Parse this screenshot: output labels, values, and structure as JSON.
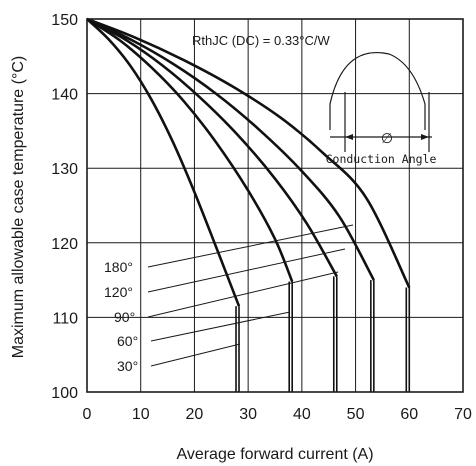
{
  "chart_data": {
    "type": "line",
    "xlabel": "Average forward current (A)",
    "ylabel": "Maximum allowable case temperature (°C)",
    "xlim": [
      0,
      70
    ],
    "ylim": [
      100,
      150
    ],
    "xticks": [
      "0",
      "10",
      "20",
      "30",
      "40",
      "50",
      "60",
      "70"
    ],
    "yticks": [
      "100",
      "110",
      "120",
      "130",
      "140",
      "150"
    ],
    "grid": true,
    "annotation": "RthJC (DC) = 0.33°C/W",
    "inset": {
      "label": "Conduction Angle",
      "symbol": "∅"
    },
    "series": [
      {
        "name": "30°",
        "x": [
          0,
          4,
          8,
          12,
          16,
          20,
          24,
          28.3
        ],
        "y": [
          150,
          147.3,
          143.8,
          139.2,
          133.5,
          126.8,
          119.5,
          111.5
        ],
        "cutoff": 28.3
      },
      {
        "name": "60°",
        "x": [
          0,
          6,
          12,
          18,
          24,
          30,
          35,
          38.2
        ],
        "y": [
          150,
          147.2,
          143.5,
          139.0,
          133.5,
          127.0,
          120.5,
          114.8
        ],
        "cutoff": 38.2
      },
      {
        "name": "90°",
        "x": [
          0,
          7,
          14,
          21,
          28,
          35,
          41,
          46.5
        ],
        "y": [
          150,
          147.3,
          143.8,
          139.5,
          134.5,
          128.6,
          122.5,
          115.5
        ],
        "cutoff": 46.5
      },
      {
        "name": "120°",
        "x": [
          0,
          8,
          16,
          24,
          32,
          40,
          47,
          53.4
        ],
        "y": [
          150,
          147.3,
          144.0,
          140.0,
          135.2,
          129.6,
          123.5,
          115.0
        ],
        "cutoff": 53.4
      },
      {
        "name": "180°",
        "x": [
          0,
          9,
          18,
          27,
          36,
          44,
          52,
          60.0
        ],
        "y": [
          150,
          147.5,
          144.5,
          141.0,
          136.8,
          132.0,
          126.0,
          114.0
        ],
        "cutoff": 60.0
      }
    ],
    "angle_labels": [
      "180°",
      "120°",
      "90°",
      "60°",
      "30°"
    ]
  }
}
